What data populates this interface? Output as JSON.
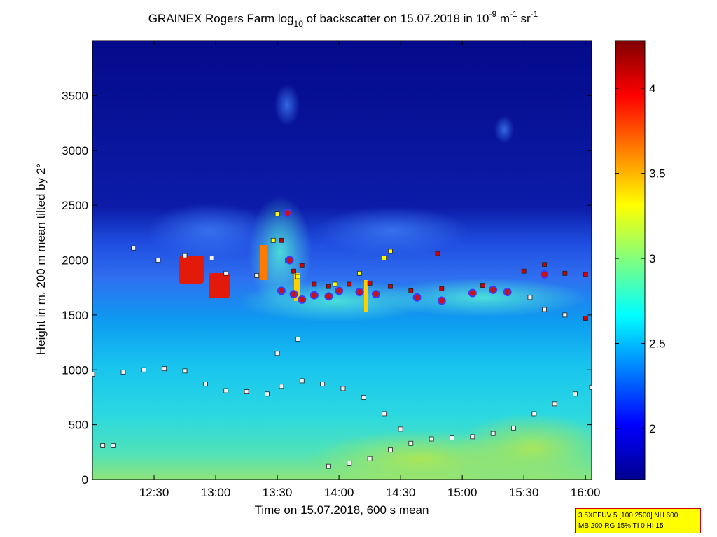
{
  "chart_data": {
    "type": "heatmap",
    "title": {
      "prefix": "GRAINEX Rogers Farm log",
      "sub1": "10",
      "middle": " of backscatter on 15.07.2018 in 10",
      "sup1": "-9",
      "unit1": " m",
      "sup2": "-1",
      "unit2": " sr",
      "sup3": "-1"
    },
    "xlabel": "Time on 15.07.2018, 600 s mean",
    "ylabel": "Height in m, 200 m mean tilted by 2°",
    "xlim": [
      "12:00",
      "16:03"
    ],
    "ylim": [
      0,
      4000
    ],
    "x_ticks": [
      "12:30",
      "13:00",
      "13:30",
      "14:00",
      "14:30",
      "15:00",
      "15:30",
      "16:00"
    ],
    "y_ticks": [
      "0",
      "500",
      "1000",
      "1500",
      "2000",
      "2500",
      "3000",
      "3500"
    ],
    "colorbar": {
      "range": [
        1.7,
        4.28
      ],
      "colormap": "jet",
      "ticks": [
        "2",
        "2.5",
        "3",
        "3.5",
        "4"
      ]
    },
    "series": [
      {
        "type": "square-markers",
        "color": "#f2f2f2",
        "points": [
          [
            "12:00",
            960
          ],
          [
            "12:15",
            980
          ],
          [
            "12:25",
            1000
          ],
          [
            "12:35",
            1010
          ],
          [
            "12:45",
            990
          ],
          [
            "12:55",
            870
          ],
          [
            "13:05",
            810
          ],
          [
            "13:15",
            800
          ],
          [
            "13:25",
            780
          ],
          [
            "13:32",
            850
          ],
          [
            "13:42",
            900
          ],
          [
            "13:52",
            870
          ],
          [
            "14:02",
            830
          ],
          [
            "14:12",
            750
          ],
          [
            "14:22",
            600
          ],
          [
            "14:30",
            460
          ],
          [
            "13:55",
            120
          ],
          [
            "14:05",
            150
          ],
          [
            "14:15",
            190
          ],
          [
            "14:25",
            270
          ],
          [
            "14:35",
            330
          ],
          [
            "14:45",
            370
          ],
          [
            "14:55",
            380
          ],
          [
            "15:05",
            390
          ],
          [
            "15:15",
            420
          ],
          [
            "15:25",
            470
          ],
          [
            "15:35",
            600
          ],
          [
            "15:45",
            690
          ],
          [
            "15:55",
            780
          ],
          [
            "16:03",
            840
          ],
          [
            "12:20",
            2110
          ],
          [
            "12:32",
            2000
          ],
          [
            "12:45",
            2040
          ],
          [
            "12:58",
            2020
          ],
          [
            "13:05",
            1880
          ],
          [
            "13:20",
            1860
          ],
          [
            "13:40",
            1280
          ],
          [
            "13:30",
            1150
          ],
          [
            "12:05",
            310
          ],
          [
            "12:10",
            310
          ],
          [
            "15:33",
            1660
          ],
          [
            "15:40",
            1550
          ],
          [
            "15:50",
            1500
          ],
          [
            "16:00",
            1470
          ]
        ]
      },
      {
        "type": "square-markers",
        "color": "#cc0000",
        "points": [
          [
            "13:32",
            2180
          ],
          [
            "13:35",
            2000
          ],
          [
            "13:38",
            1900
          ],
          [
            "13:42",
            1950
          ],
          [
            "13:48",
            1780
          ],
          [
            "13:55",
            1760
          ],
          [
            "14:05",
            1780
          ],
          [
            "14:15",
            1790
          ],
          [
            "14:25",
            1760
          ],
          [
            "14:35",
            1720
          ],
          [
            "14:50",
            1740
          ],
          [
            "15:10",
            1770
          ],
          [
            "15:30",
            1900
          ],
          [
            "15:40",
            1960
          ],
          [
            "15:50",
            1880
          ],
          [
            "16:00",
            1870
          ],
          [
            "14:48",
            2060
          ],
          [
            "16:00",
            1470
          ]
        ]
      },
      {
        "type": "square-markers",
        "color": "#ffff00",
        "points": [
          [
            "13:30",
            2420
          ],
          [
            "13:28",
            2180
          ],
          [
            "13:40",
            1850
          ],
          [
            "14:10",
            1880
          ],
          [
            "14:22",
            2020
          ],
          [
            "13:58",
            1780
          ],
          [
            "14:25",
            2080
          ]
        ]
      },
      {
        "type": "circle-markers",
        "color": "#cc1111",
        "edge": "#3b3bff",
        "points": [
          [
            "13:35",
            2430
          ],
          [
            "13:36",
            2000
          ],
          [
            "13:32",
            1720
          ],
          [
            "13:38",
            1690
          ],
          [
            "13:42",
            1640
          ],
          [
            "13:48",
            1680
          ],
          [
            "13:55",
            1670
          ],
          [
            "14:00",
            1720
          ],
          [
            "14:10",
            1710
          ],
          [
            "14:18",
            1690
          ],
          [
            "14:38",
            1660
          ],
          [
            "14:50",
            1630
          ],
          [
            "15:05",
            1700
          ],
          [
            "15:15",
            1730
          ],
          [
            "15:22",
            1710
          ],
          [
            "15:40",
            1870
          ]
        ]
      }
    ]
  },
  "info_box": {
    "line1": "3.5XEFUV 5 [100 2500] NH 600",
    "line2": "MB 200 RG 15% TI 0 HI 15"
  }
}
